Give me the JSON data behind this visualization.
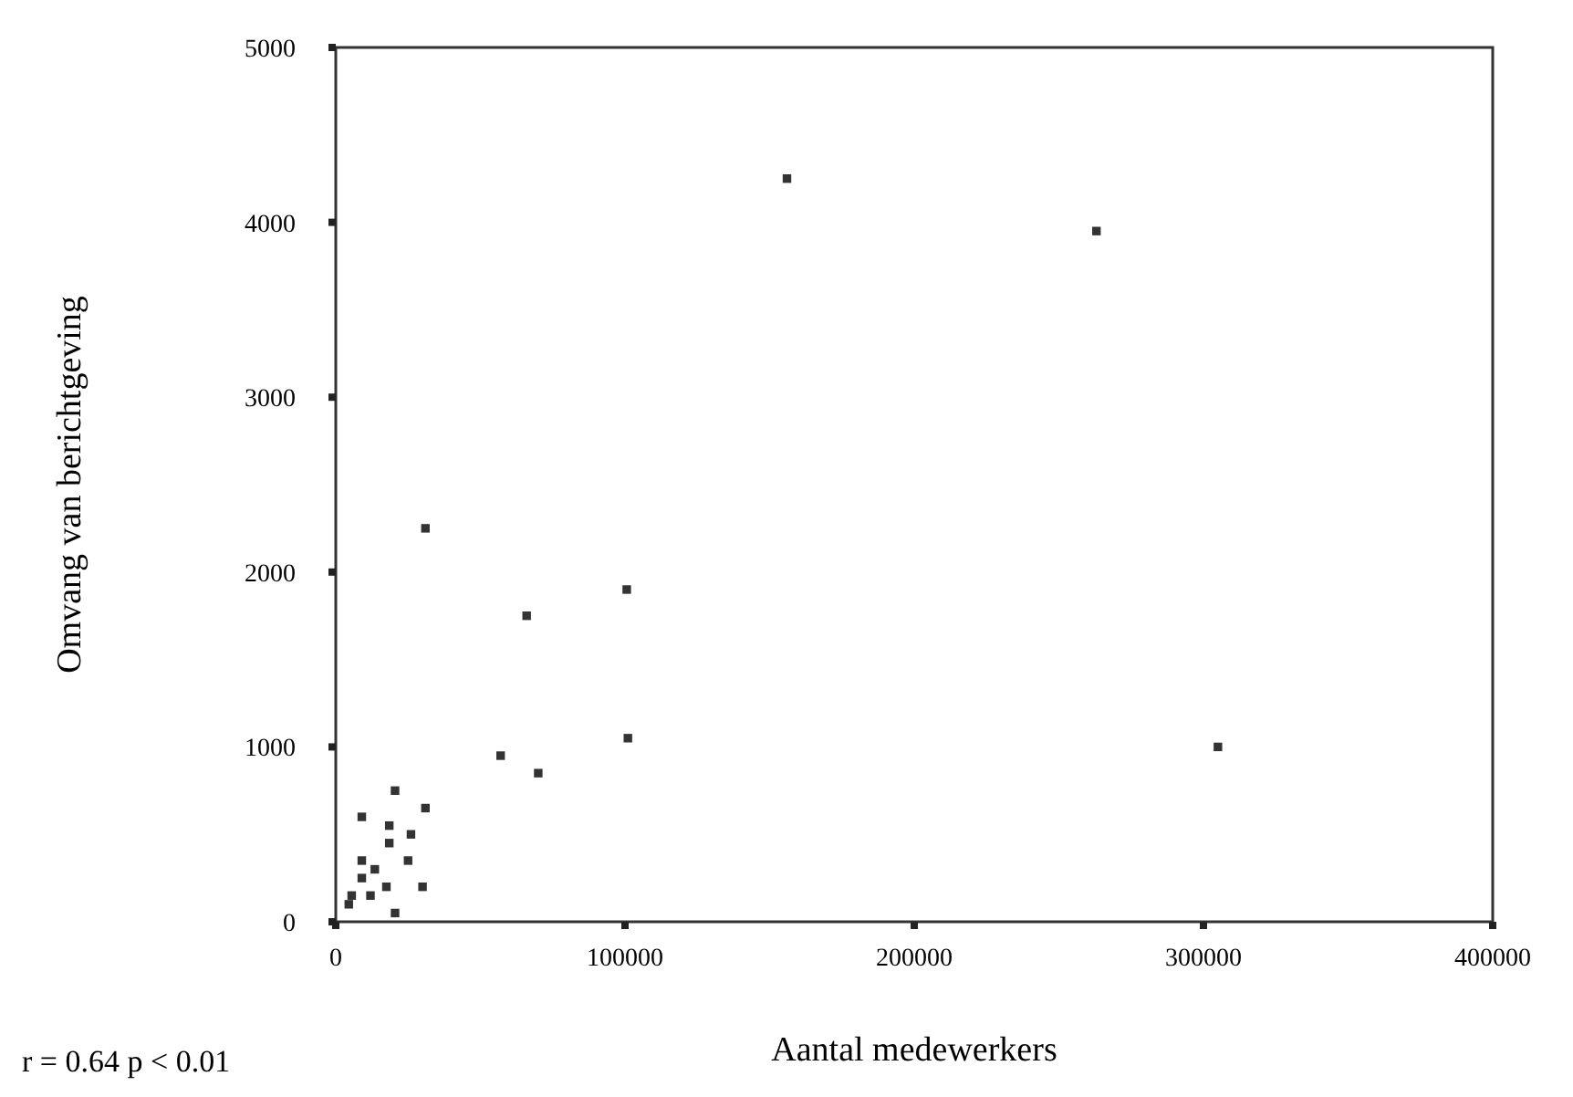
{
  "chart_data": {
    "type": "scatter",
    "xlabel": "Aantal medewerkers",
    "ylabel": "Omvang van berichtgeving",
    "annotations": [
      "r = 0.64  p < 0.01"
    ],
    "marker": "square",
    "grid": false,
    "xlim": [
      0,
      400000
    ],
    "xticks": [
      0,
      100000,
      200000,
      300000,
      400000
    ],
    "ylim": [
      0,
      5000
    ],
    "yticks": [
      0,
      1000,
      2000,
      3000,
      4000,
      5000
    ],
    "series": [
      {
        "color": "#333333",
        "x": [
          156000,
          263000,
          31000,
          66000,
          100600,
          101000,
          57000,
          70000,
          305000,
          20500,
          9000,
          31000,
          18500,
          26000,
          18500,
          9000,
          13500,
          25000,
          9000,
          17500,
          30000,
          12000,
          5500,
          4500,
          20500
        ],
        "values": [
          4250,
          3950,
          2250,
          1750,
          1900,
          1050,
          950,
          850,
          1000,
          750,
          600,
          650,
          550,
          500,
          450,
          350,
          300,
          350,
          250,
          200,
          200,
          150,
          150,
          100,
          50
        ]
      }
    ]
  }
}
